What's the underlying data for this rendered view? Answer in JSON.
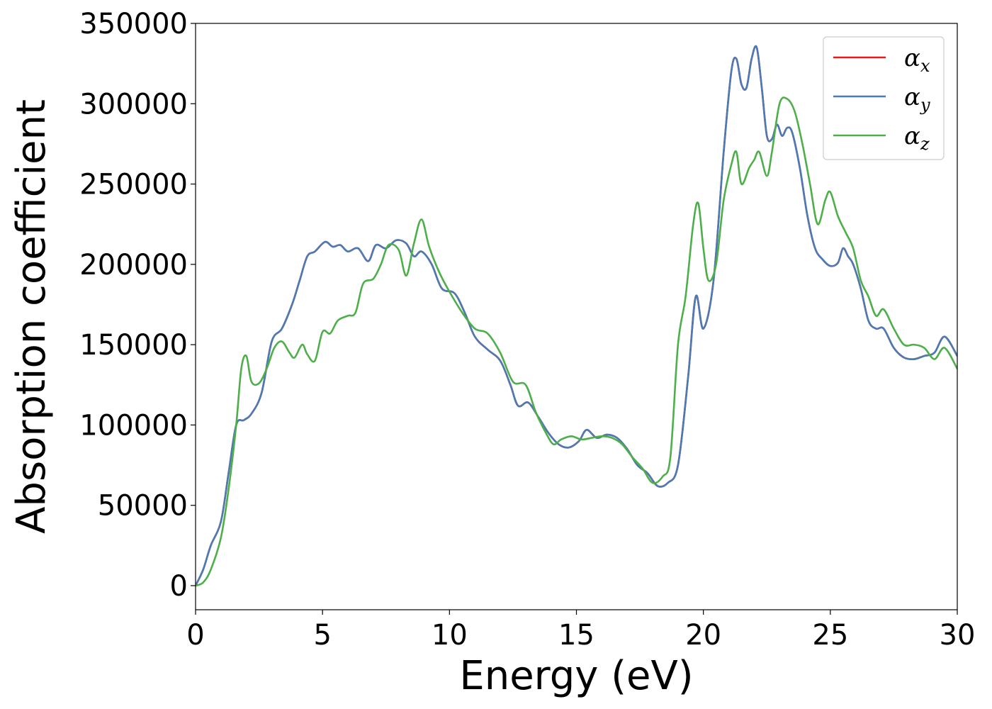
{
  "chart_data": {
    "type": "line",
    "title": "",
    "xlabel": "Energy (eV)",
    "ylabel": "Absorption coefficient",
    "xlim": [
      0,
      30
    ],
    "ylim": [
      -15000,
      350000
    ],
    "x_ticks": [
      0,
      5,
      10,
      15,
      20,
      25,
      30
    ],
    "x_tick_labels": [
      "0",
      "5",
      "10",
      "15",
      "20",
      "25",
      "30"
    ],
    "y_ticks": [
      0,
      50000,
      100000,
      150000,
      200000,
      250000,
      300000,
      350000
    ],
    "y_tick_labels": [
      "0",
      "50000",
      "100000",
      "150000",
      "200000",
      "250000",
      "300000",
      "350000"
    ],
    "grid": false,
    "legend_position": "top-right",
    "series": [
      {
        "name": "αx",
        "legend_symbol": "α",
        "legend_subscript": "x",
        "color": "#e41a1c",
        "x": [
          0,
          0.3,
          0.6,
          1.0,
          1.3,
          1.6,
          1.9,
          2.2,
          2.6,
          3.0,
          3.4,
          3.8,
          4.1,
          4.4,
          4.7,
          5.1,
          5.4,
          5.7,
          6.0,
          6.4,
          6.8,
          7.1,
          7.5,
          7.9,
          8.3,
          8.6,
          8.9,
          9.3,
          9.7,
          10.2,
          10.6,
          11.0,
          11.5,
          12.0,
          12.4,
          12.7,
          13.1,
          13.5,
          13.9,
          14.3,
          14.7,
          15.1,
          15.4,
          15.8,
          16.2,
          16.6,
          17.0,
          17.4,
          17.8,
          18.2,
          18.6,
          19.0,
          19.4,
          19.7,
          20.0,
          20.4,
          20.8,
          21.1,
          21.3,
          21.5,
          21.7,
          21.9,
          22.1,
          22.3,
          22.5,
          22.7,
          22.9,
          23.1,
          23.3,
          23.5,
          23.8,
          24.1,
          24.4,
          24.7,
          25.0,
          25.3,
          25.5,
          25.7,
          25.9,
          26.2,
          26.5,
          26.8,
          27.1,
          27.5,
          27.9,
          28.3,
          28.7,
          29.1,
          29.5,
          30.0
        ],
        "y": [
          0,
          10000,
          25000,
          40000,
          70000,
          100000,
          103000,
          107000,
          120000,
          152000,
          160000,
          175000,
          190000,
          205000,
          208000,
          214000,
          211000,
          212000,
          208000,
          210000,
          202000,
          212000,
          210000,
          215000,
          213000,
          205000,
          208000,
          200000,
          185000,
          182000,
          170000,
          155000,
          147000,
          140000,
          125000,
          112000,
          114000,
          105000,
          95000,
          88000,
          86000,
          90000,
          97000,
          92000,
          94000,
          92000,
          85000,
          75000,
          70000,
          62000,
          64000,
          75000,
          130000,
          180000,
          160000,
          190000,
          270000,
          320000,
          328000,
          312000,
          310000,
          328000,
          335000,
          310000,
          280000,
          278000,
          287000,
          280000,
          285000,
          282000,
          260000,
          230000,
          210000,
          203000,
          199000,
          201000,
          210000,
          205000,
          200000,
          185000,
          165000,
          160000,
          160000,
          148000,
          142000,
          141000,
          143000,
          145000,
          155000,
          143000
        ]
      },
      {
        "name": "αy",
        "legend_symbol": "α",
        "legend_subscript": "y",
        "color": "#4a7bb5",
        "x": [
          0,
          0.3,
          0.6,
          1.0,
          1.3,
          1.6,
          1.9,
          2.2,
          2.6,
          3.0,
          3.4,
          3.8,
          4.1,
          4.4,
          4.7,
          5.1,
          5.4,
          5.7,
          6.0,
          6.4,
          6.8,
          7.1,
          7.5,
          7.9,
          8.3,
          8.6,
          8.9,
          9.3,
          9.7,
          10.2,
          10.6,
          11.0,
          11.5,
          12.0,
          12.4,
          12.7,
          13.1,
          13.5,
          13.9,
          14.3,
          14.7,
          15.1,
          15.4,
          15.8,
          16.2,
          16.6,
          17.0,
          17.4,
          17.8,
          18.2,
          18.6,
          19.0,
          19.4,
          19.7,
          20.0,
          20.4,
          20.8,
          21.1,
          21.3,
          21.5,
          21.7,
          21.9,
          22.1,
          22.3,
          22.5,
          22.7,
          22.9,
          23.1,
          23.3,
          23.5,
          23.8,
          24.1,
          24.4,
          24.7,
          25.0,
          25.3,
          25.5,
          25.7,
          25.9,
          26.2,
          26.5,
          26.8,
          27.1,
          27.5,
          27.9,
          28.3,
          28.7,
          29.1,
          29.5,
          30.0
        ],
        "y": [
          0,
          10000,
          25000,
          40000,
          70000,
          100000,
          103000,
          107000,
          120000,
          152000,
          160000,
          175000,
          190000,
          205000,
          208000,
          214000,
          211000,
          212000,
          208000,
          210000,
          202000,
          212000,
          210000,
          215000,
          213000,
          205000,
          208000,
          200000,
          185000,
          182000,
          170000,
          155000,
          147000,
          140000,
          125000,
          112000,
          114000,
          105000,
          95000,
          88000,
          86000,
          90000,
          97000,
          92000,
          94000,
          92000,
          85000,
          75000,
          70000,
          62000,
          64000,
          75000,
          130000,
          180000,
          160000,
          190000,
          270000,
          320000,
          328000,
          312000,
          310000,
          328000,
          335000,
          310000,
          280000,
          278000,
          287000,
          280000,
          285000,
          282000,
          260000,
          230000,
          210000,
          203000,
          199000,
          201000,
          210000,
          205000,
          200000,
          185000,
          165000,
          160000,
          160000,
          148000,
          142000,
          141000,
          143000,
          145000,
          155000,
          143000
        ]
      },
      {
        "name": "αz",
        "legend_symbol": "α",
        "legend_subscript": "z",
        "color": "#4daf4a",
        "x": [
          0,
          0.3,
          0.6,
          1.0,
          1.3,
          1.6,
          1.8,
          2.0,
          2.2,
          2.5,
          2.8,
          3.1,
          3.4,
          3.7,
          3.9,
          4.2,
          4.4,
          4.7,
          5.0,
          5.3,
          5.6,
          6.0,
          6.3,
          6.6,
          7.0,
          7.3,
          7.6,
          8.0,
          8.3,
          8.6,
          8.9,
          9.2,
          9.6,
          10.0,
          10.5,
          11.0,
          11.5,
          12.0,
          12.5,
          13.0,
          13.4,
          13.8,
          14.1,
          14.4,
          14.8,
          15.2,
          15.6,
          16.0,
          16.4,
          16.8,
          17.2,
          17.6,
          18.0,
          18.4,
          18.7,
          19.0,
          19.3,
          19.6,
          19.8,
          20.0,
          20.2,
          20.5,
          20.8,
          21.1,
          21.3,
          21.5,
          21.8,
          22.0,
          22.2,
          22.5,
          22.7,
          23.0,
          23.3,
          23.6,
          23.9,
          24.2,
          24.5,
          24.8,
          25.0,
          25.3,
          25.6,
          25.9,
          26.2,
          26.5,
          26.8,
          27.1,
          27.5,
          27.9,
          28.3,
          28.7,
          29.1,
          29.5,
          30.0
        ],
        "y": [
          0,
          2000,
          10000,
          30000,
          60000,
          100000,
          135000,
          143000,
          127000,
          126000,
          135000,
          148000,
          152000,
          145000,
          142000,
          150000,
          144000,
          140000,
          158000,
          157000,
          165000,
          168000,
          170000,
          188000,
          191000,
          200000,
          212000,
          209000,
          193000,
          213000,
          228000,
          211000,
          195000,
          183000,
          170000,
          160000,
          157000,
          145000,
          127000,
          125000,
          108000,
          95000,
          88000,
          91000,
          93000,
          91000,
          92000,
          93000,
          92000,
          88000,
          80000,
          73000,
          64000,
          68000,
          80000,
          150000,
          180000,
          225000,
          238000,
          210000,
          190000,
          200000,
          240000,
          262000,
          270000,
          250000,
          260000,
          265000,
          270000,
          255000,
          270000,
          300000,
          303000,
          295000,
          275000,
          250000,
          225000,
          240000,
          245000,
          230000,
          220000,
          210000,
          190000,
          180000,
          168000,
          172000,
          160000,
          150000,
          150000,
          148000,
          141000,
          148000,
          135000
        ]
      }
    ]
  }
}
